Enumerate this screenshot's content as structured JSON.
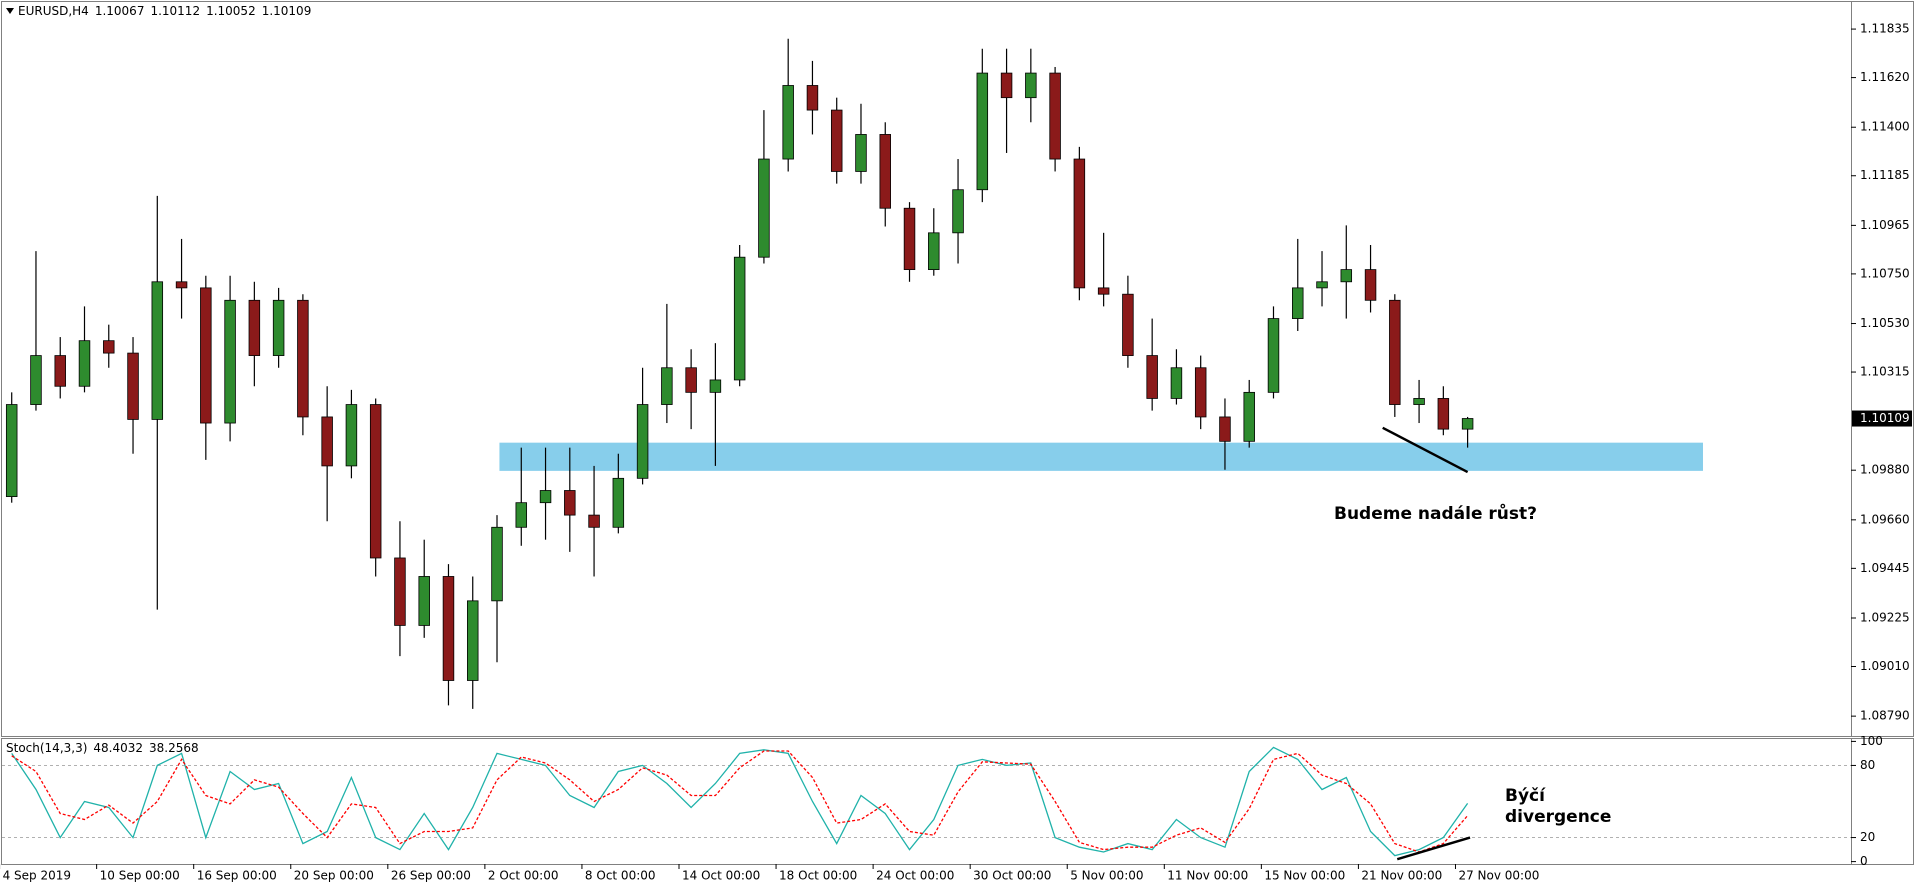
{
  "chart_data": [
    {
      "type": "candlestick",
      "symbol": "EURUSD,H4",
      "last_bar": {
        "open": 1.10067,
        "high": 1.10112,
        "low": 1.10052,
        "close": 1.10109
      },
      "ohlc": [
        [
          1.09763,
          1.10225,
          1.09736,
          1.10171
        ],
        [
          1.10171,
          1.10851,
          1.10144,
          1.10388
        ],
        [
          1.10388,
          1.1047,
          1.10198,
          1.10252
        ],
        [
          1.10252,
          1.10606,
          1.10225,
          1.10454
        ],
        [
          1.10454,
          1.10525,
          1.10334,
          1.10399
        ],
        [
          1.10399,
          1.1047,
          1.09953,
          1.10105
        ],
        [
          1.10105,
          1.11096,
          1.09262,
          1.10715
        ],
        [
          1.10715,
          1.10905,
          1.10552,
          1.10688
        ],
        [
          1.10688,
          1.10742,
          1.09926,
          1.10089
        ],
        [
          1.10089,
          1.10742,
          1.10008,
          1.10633
        ],
        [
          1.10633,
          1.10715,
          1.10252,
          1.10388
        ],
        [
          1.10388,
          1.10688,
          1.10334,
          1.10633
        ],
        [
          1.10633,
          1.1066,
          1.10035,
          1.10116
        ],
        [
          1.10116,
          1.10252,
          1.09654,
          1.09899
        ],
        [
          1.09899,
          1.10236,
          1.09844,
          1.10171
        ],
        [
          1.10171,
          1.10198,
          1.09409,
          1.09491
        ],
        [
          1.09491,
          1.09654,
          1.09056,
          1.09192
        ],
        [
          1.09192,
          1.09572,
          1.09137,
          1.09409
        ],
        [
          1.09409,
          1.09464,
          1.08838,
          1.08948
        ],
        [
          1.08948,
          1.09409,
          1.08822,
          1.09301
        ],
        [
          1.09301,
          1.09681,
          1.09029,
          1.09627
        ],
        [
          1.09627,
          1.0998,
          1.09545,
          1.09736
        ],
        [
          1.09736,
          1.0998,
          1.09572,
          1.0979
        ],
        [
          1.0979,
          1.0998,
          1.09518,
          1.09681
        ],
        [
          1.09681,
          1.09899,
          1.09409,
          1.09627
        ],
        [
          1.09627,
          1.09953,
          1.096,
          1.09844
        ],
        [
          1.09844,
          1.10334,
          1.09817,
          1.10171
        ],
        [
          1.10171,
          1.10617,
          1.10089,
          1.10334
        ],
        [
          1.10334,
          1.10416,
          1.10062,
          1.10225
        ],
        [
          1.10225,
          1.10443,
          1.09899,
          1.1028
        ],
        [
          1.1028,
          1.10878,
          1.10252,
          1.10824
        ],
        [
          1.10824,
          1.11476,
          1.10796,
          1.11259
        ],
        [
          1.11259,
          1.11792,
          1.11204,
          1.11585
        ],
        [
          1.11585,
          1.11694,
          1.11368,
          1.11476
        ],
        [
          1.11476,
          1.11531,
          1.1115,
          1.11204
        ],
        [
          1.11204,
          1.11504,
          1.1115,
          1.11368
        ],
        [
          1.11368,
          1.11422,
          1.1096,
          1.11041
        ],
        [
          1.11041,
          1.11068,
          1.10715,
          1.10769
        ],
        [
          1.10769,
          1.11041,
          1.10742,
          1.10932
        ],
        [
          1.10932,
          1.11259,
          1.10796,
          1.11123
        ],
        [
          1.11123,
          1.11748,
          1.11068,
          1.1164
        ],
        [
          1.1164,
          1.11748,
          1.11286,
          1.11531
        ],
        [
          1.11531,
          1.11748,
          1.11422,
          1.1164
        ],
        [
          1.1164,
          1.11667,
          1.11204,
          1.11259
        ],
        [
          1.11259,
          1.11313,
          1.10633,
          1.10688
        ],
        [
          1.10688,
          1.10932,
          1.10606,
          1.1066
        ],
        [
          1.1066,
          1.10742,
          1.10334,
          1.10388
        ],
        [
          1.10388,
          1.10552,
          1.10144,
          1.10198
        ],
        [
          1.10198,
          1.10416,
          1.10171,
          1.10334
        ],
        [
          1.10334,
          1.10388,
          1.10062,
          1.10116
        ],
        [
          1.10116,
          1.10198,
          1.09882,
          1.10008
        ],
        [
          1.10008,
          1.1028,
          1.0998,
          1.10225
        ],
        [
          1.10225,
          1.10606,
          1.10198,
          1.10552
        ],
        [
          1.10552,
          1.10905,
          1.10497,
          1.10688
        ],
        [
          1.10688,
          1.10851,
          1.10606,
          1.10715
        ],
        [
          1.10715,
          1.10965,
          1.10552,
          1.10769
        ],
        [
          1.10769,
          1.10878,
          1.10579,
          1.10633
        ],
        [
          1.10633,
          1.1066,
          1.10116,
          1.10171
        ],
        [
          1.10171,
          1.1028,
          1.10089,
          1.10198
        ],
        [
          1.10198,
          1.10252,
          1.10035,
          1.10062
        ],
        [
          1.10062,
          1.10116,
          1.0998,
          1.10109
        ]
      ],
      "up_color": "#2e8b2e",
      "down_color": "#8b1a1a",
      "xlim": [
        -0.4,
        75.8
      ],
      "xticks": [
        {
          "value": -0.5,
          "label": "4 Sep 2019"
        },
        {
          "value": 3.5,
          "label": "10 Sep 00:00"
        },
        {
          "value": 7.5,
          "label": "16 Sep 00:00"
        },
        {
          "value": 11.5,
          "label": "20 Sep 00:00"
        },
        {
          "value": 15.5,
          "label": "26 Sep 00:00"
        },
        {
          "value": 19.5,
          "label": "2 Oct 00:00"
        },
        {
          "value": 23.5,
          "label": "8 Oct 00:00"
        },
        {
          "value": 27.5,
          "label": "14 Oct 00:00"
        },
        {
          "value": 31.5,
          "label": "18 Oct 00:00"
        },
        {
          "value": 35.5,
          "label": "24 Oct 00:00"
        },
        {
          "value": 39.5,
          "label": "30 Oct 00:00"
        },
        {
          "value": 43.5,
          "label": "5 Nov 00:00"
        },
        {
          "value": 47.5,
          "label": "11 Nov 00:00"
        },
        {
          "value": 51.5,
          "label": "15 Nov 00:00"
        },
        {
          "value": 55.5,
          "label": "21 Nov 00:00"
        },
        {
          "value": 59.5,
          "label": "27 Nov 00:00"
        }
      ],
      "ylim": [
        1.08702,
        1.11955
      ],
      "yticks": [
        1.11835,
        {
          "value": 1.1162,
          "label": "1.11620"
        },
        {
          "value": 1.114,
          "label": "1.11400"
        },
        1.11185,
        1.10965,
        {
          "value": 1.1075,
          "label": "1.10750"
        },
        {
          "value": 1.1053,
          "label": "1.10530"
        },
        1.10315,
        {
          "value": 1.0988,
          "label": "1.09880"
        },
        {
          "value": 1.0966,
          "label": "1.09660"
        },
        1.09445,
        1.09225,
        {
          "value": 1.0901,
          "label": "1.09010"
        },
        {
          "value": 1.0879,
          "label": "1.08790"
        }
      ],
      "grid": false,
      "zone": {
        "x": [
          20.1,
          69.7
        ],
        "y": [
          1.09877,
          1.10002
        ],
        "color": "#87ceeb"
      },
      "trendline": {
        "x": [
          56.5,
          60.0
        ],
        "y": [
          1.10068,
          1.09872
        ],
        "color": "#000000"
      },
      "annotation": "Budeme nadále růst?"
    },
    {
      "type": "line",
      "title": "Stoch(14,3,3)",
      "xlim": [
        -0.4,
        75.8
      ],
      "ylim": [
        -2,
        102
      ],
      "yticks": [
        0,
        20,
        80,
        100
      ],
      "levels": [
        20,
        80
      ],
      "series": [
        {
          "color": "#20b2aa",
          "dashed": false,
          "values": [
            90,
            60,
            20,
            50,
            45,
            20,
            80,
            90,
            20,
            75,
            60,
            65,
            15,
            25,
            70,
            20,
            10,
            40,
            10,
            45,
            90,
            85,
            80,
            55,
            45,
            75,
            80,
            65,
            45,
            65,
            90,
            93,
            90,
            50,
            15,
            55,
            40,
            10,
            35,
            80,
            85,
            80,
            82,
            20,
            12,
            8,
            15,
            10,
            35,
            20,
            12,
            75,
            95,
            85,
            60,
            70,
            25,
            5,
            10,
            20,
            48.4032
          ]
        },
        {
          "color": "#ff0000",
          "dashed": true,
          "values": [
            88,
            75,
            40,
            35,
            47,
            32,
            50,
            85,
            55,
            48,
            68,
            62,
            40,
            20,
            48,
            45,
            15,
            25,
            25,
            28,
            68,
            87,
            82,
            68,
            50,
            60,
            78,
            72,
            55,
            55,
            78,
            92,
            92,
            70,
            32,
            35,
            48,
            25,
            22,
            58,
            83,
            82,
            81,
            50,
            16,
            10,
            12,
            12,
            22,
            28,
            16,
            44,
            85,
            90,
            72,
            65,
            48,
            15,
            8,
            15,
            38.2568
          ]
        }
      ],
      "trendline": {
        "x": [
          57.1,
          60.1
        ],
        "y": [
          2,
          20
        ],
        "color": "#000000"
      },
      "annotation": "Býčí divergence"
    }
  ]
}
